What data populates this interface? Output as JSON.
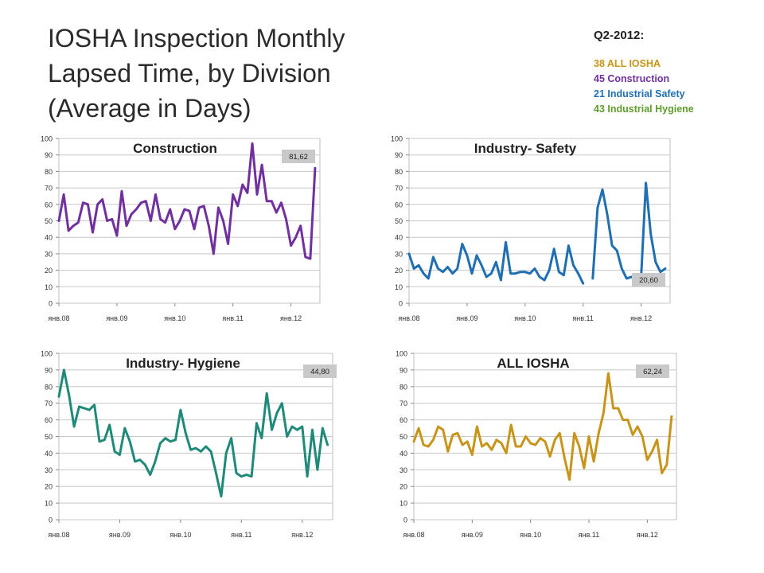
{
  "title_lines": [
    "IOSHA Inspection Monthly",
    "Lapsed Time, by Division",
    "(Average in Days)"
  ],
  "summary": {
    "title": "Q2-2012:",
    "items": [
      {
        "text": "38 ALL IOSHA",
        "color": "#c8941a"
      },
      {
        "text": "45 Construction",
        "color": "#7030a0"
      },
      {
        "text": "21 Industrial Safety",
        "color": "#1f6fb2"
      },
      {
        "text": "43 Industrial Hygiene",
        "color": "#5e9e2e"
      }
    ]
  },
  "chart_data": [
    {
      "type": "line",
      "title": "Construction",
      "color": "#7030a0",
      "ylim": [
        0,
        100
      ],
      "yticks": [
        0,
        10,
        20,
        30,
        40,
        50,
        60,
        70,
        80,
        90,
        100
      ],
      "xticks": [
        "янв.08",
        "янв.09",
        "янв.10",
        "янв.11",
        "янв.12"
      ],
      "months": 55,
      "callout": "81,62",
      "grid": true,
      "legend": "none",
      "series": [
        {
          "values": [
            50,
            66,
            44,
            47,
            49,
            61,
            60,
            43,
            60,
            63,
            50,
            51,
            41,
            68,
            47,
            54,
            57,
            61,
            62,
            50,
            66,
            51,
            49,
            57,
            45,
            50,
            57,
            56,
            45,
            58,
            59,
            47,
            30,
            58,
            50,
            36,
            66,
            59,
            72,
            67,
            97,
            66,
            84,
            62,
            62,
            55,
            61,
            51,
            35,
            40,
            47,
            28,
            27,
            82
          ]
        }
      ]
    },
    {
      "type": "line",
      "title": "Industry- Safety",
      "color": "#1f6fb2",
      "ylim": [
        0,
        100
      ],
      "yticks": [
        0,
        10,
        20,
        30,
        40,
        50,
        60,
        70,
        80,
        90,
        100
      ],
      "xticks": [
        "янв.08",
        "янв.09",
        "янв.10",
        "янв.11",
        "янв.12"
      ],
      "months": 55,
      "callout": "20,60",
      "grid": true,
      "legend": "none",
      "series": [
        {
          "values": [
            30,
            21,
            23,
            18,
            15,
            28,
            21,
            19,
            22,
            18,
            21,
            36,
            29,
            18,
            29,
            23,
            16,
            18,
            25,
            14,
            37,
            18,
            18,
            19,
            19,
            18,
            21,
            16,
            14,
            20,
            33,
            19,
            17,
            35,
            23,
            18,
            12,
            null,
            15,
            58,
            69,
            54,
            35,
            32,
            21,
            15,
            16,
            14,
            16,
            73,
            42,
            25,
            19,
            21
          ]
        }
      ]
    },
    {
      "type": "line",
      "title": "Industry- Hygiene",
      "color": "#1e8a77",
      "ylim": [
        0,
        100
      ],
      "yticks": [
        0,
        10,
        20,
        30,
        40,
        50,
        60,
        70,
        80,
        90,
        100
      ],
      "xticks": [
        "янв.08",
        "янв.09",
        "янв.10",
        "янв.11",
        "янв.12"
      ],
      "months": 55,
      "callout": "44,80",
      "grid": true,
      "legend": "none",
      "series": [
        {
          "values": [
            74,
            90,
            75,
            56,
            68,
            67,
            66,
            69,
            47,
            48,
            57,
            41,
            39,
            55,
            47,
            35,
            36,
            33,
            27,
            35,
            46,
            49,
            47,
            48,
            66,
            52,
            42,
            43,
            41,
            44,
            41,
            28,
            14,
            40,
            49,
            28,
            26,
            27,
            26,
            58,
            49,
            76,
            54,
            64,
            70,
            50,
            56,
            54,
            56,
            26,
            54,
            30,
            55,
            45
          ]
        }
      ]
    },
    {
      "type": "line",
      "title": "ALL IOSHA",
      "color": "#c8941a",
      "ylim": [
        0,
        100
      ],
      "yticks": [
        0,
        10,
        20,
        30,
        40,
        50,
        60,
        70,
        80,
        90,
        100
      ],
      "xticks": [
        "янв.08",
        "янв.09",
        "янв.10",
        "янв.11",
        "янв.12"
      ],
      "months": 55,
      "callout": "62,24",
      "grid": true,
      "legend": "none",
      "series": [
        {
          "values": [
            47,
            55,
            45,
            44,
            48,
            56,
            54,
            41,
            51,
            52,
            45,
            47,
            39,
            56,
            44,
            46,
            42,
            48,
            46,
            40,
            57,
            44,
            44,
            50,
            46,
            45,
            49,
            47,
            38,
            48,
            52,
            37,
            24,
            52,
            44,
            31,
            50,
            35,
            52,
            64,
            88,
            67,
            67,
            60,
            60,
            51,
            56,
            50,
            36,
            41,
            48,
            28,
            33,
            62
          ]
        }
      ]
    }
  ]
}
